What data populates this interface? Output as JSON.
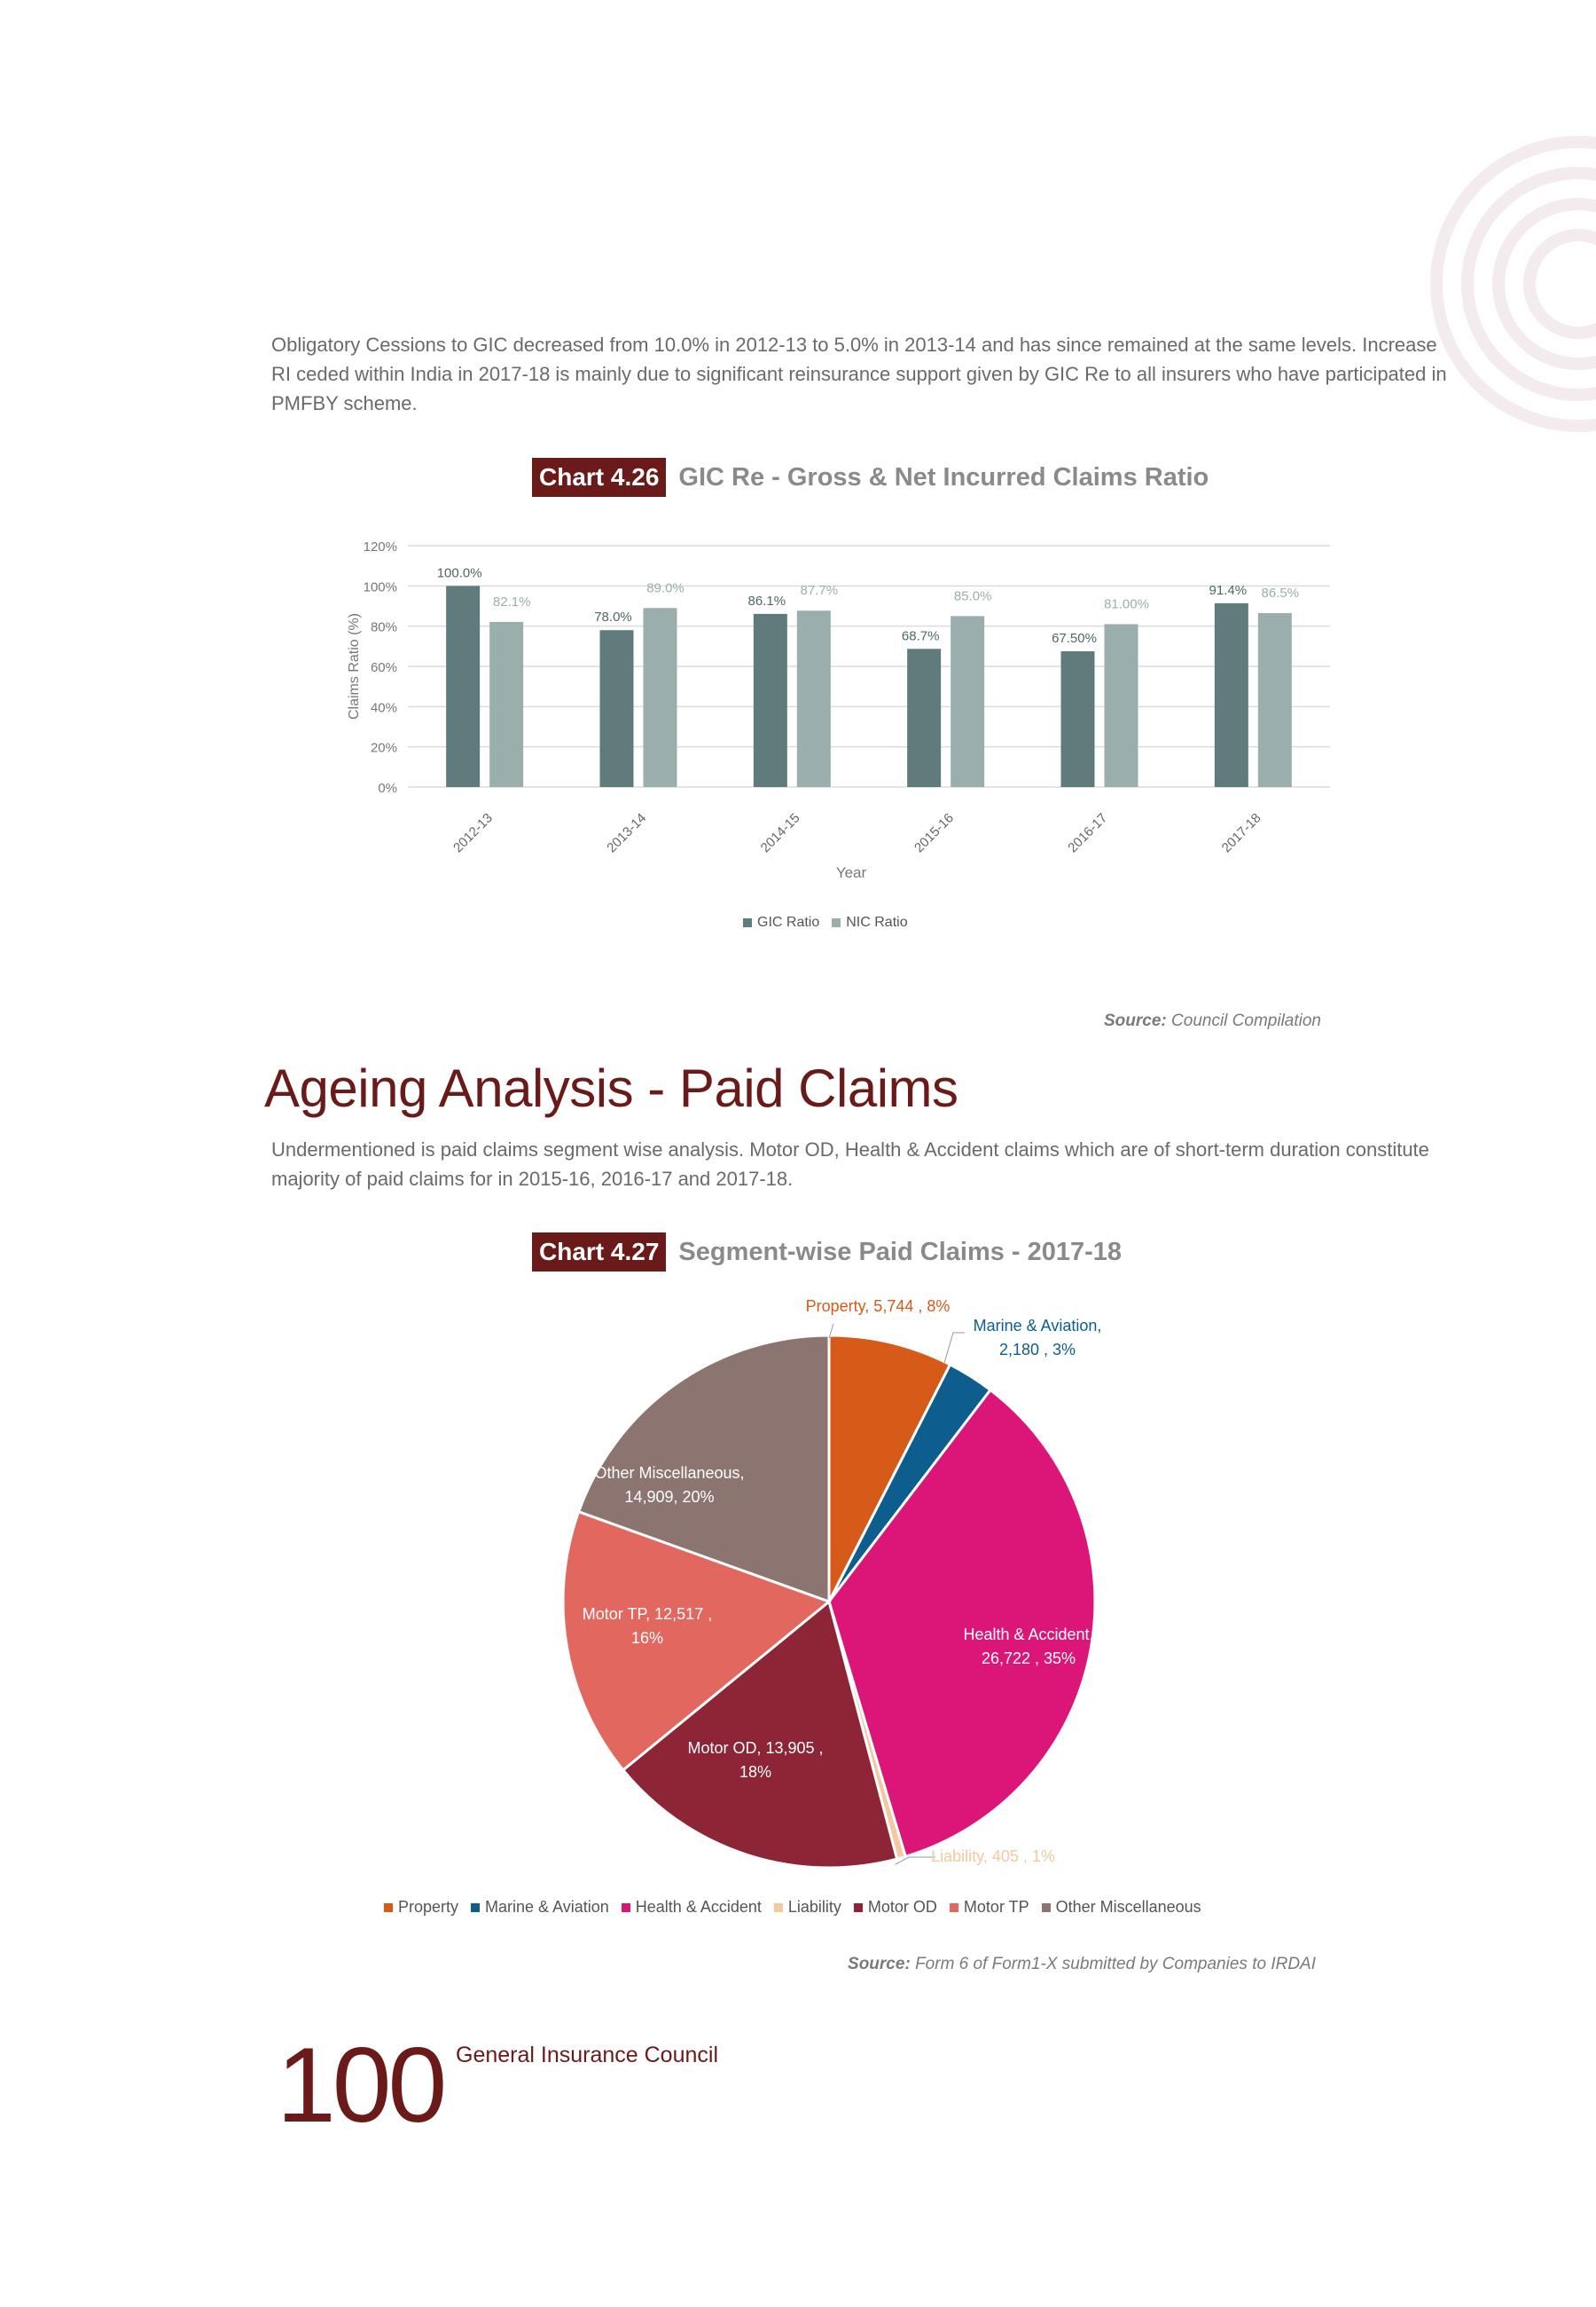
{
  "intro_text": "Obligatory Cessions to GIC decreased from 10.0% in 2012-13 to 5.0% in 2013-14 and has since remained at the same levels. Increase RI ceded within India in 2017-18 is mainly due to significant reinsurance support given by GIC Re to all insurers who have participated in PMFBY scheme.",
  "chart1_header": {
    "number": "Chart 4.26",
    "title": "GIC Re - Gross & Net Incurred Claims Ratio"
  },
  "chart1_source": {
    "label": "Source:",
    "text": "Council Compilation"
  },
  "section_title": "Ageing Analysis - Paid Claims",
  "section_text": "Undermentioned is paid claims segment wise analysis. Motor OD, Health & Accident claims which are of short-term duration constitute majority of paid claims for in 2015-16, 2016-17 and 2017-18.",
  "chart2_header": {
    "number": "Chart 4.27",
    "title": "Segment-wise Paid Claims - 2017-18"
  },
  "chart2_source": {
    "label": "Source:",
    "text": "Form 6 of Form1-X submitted by Companies to IRDAI"
  },
  "footer": {
    "page_number": "100",
    "publisher": "General Insurance Council"
  },
  "chart_data": [
    {
      "type": "bar",
      "xlabel": "Year",
      "ylabel": "Claims Ratio (%)",
      "ylim": [
        0,
        120
      ],
      "yticks": [
        "0%",
        "20%",
        "40%",
        "60%",
        "80%",
        "100%",
        "120%"
      ],
      "categories": [
        "2012-13",
        "2013-14",
        "2014-15",
        "2015-16",
        "2016-17",
        "2017-18"
      ],
      "series": [
        {
          "name": "GIC Ratio",
          "color": "#5f7b7c",
          "values": [
            100.0,
            78.0,
            86.1,
            68.7,
            67.5,
            91.4
          ],
          "labels": [
            "100.0%",
            "78.0%",
            "86.1%",
            "68.7%",
            "67.50%",
            "91.4%"
          ]
        },
        {
          "name": "NIC Ratio",
          "color": "#9aafad",
          "values": [
            82.1,
            89.0,
            87.7,
            85.0,
            81.0,
            86.5
          ],
          "labels": [
            "82.1%",
            "89.0%",
            "87.7%",
            "85.0%",
            "81.00%",
            "86.5%"
          ]
        }
      ],
      "grid": true,
      "legend": "bottom"
    },
    {
      "type": "pie",
      "slices": [
        {
          "name": "Property",
          "value": 5744,
          "percent": 8,
          "color": "#d65a18",
          "label_lines": [
            "Property,  5,744 , 8%"
          ]
        },
        {
          "name": "Marine & Aviation",
          "value": 2180,
          "percent": 3,
          "color": "#0e5d8f",
          "label_lines": [
            "Marine & Aviation,",
            "2,180 , 3%"
          ]
        },
        {
          "name": "Health & Accident",
          "value": 26722,
          "percent": 35,
          "color": "#dc1579",
          "label_lines": [
            "Health & Accident,",
            "26,722 , 35%"
          ]
        },
        {
          "name": "Liability",
          "value": 405,
          "percent": 1,
          "color": "#f2c9a0",
          "label_lines": [
            "Liability,  405 , 1%"
          ]
        },
        {
          "name": "Motor OD",
          "value": 13905,
          "percent": 18,
          "color": "#8e2537",
          "label_lines": [
            "Motor OD,  13,905 ,",
            "18%"
          ]
        },
        {
          "name": "Motor TP",
          "value": 12517,
          "percent": 16,
          "color": "#e2675f",
          "label_lines": [
            "Motor TP,  12,517 ,",
            "16%"
          ]
        },
        {
          "name": "Other Miscellaneous",
          "value": 14909,
          "percent": 20,
          "color": "#8c7470",
          "label_lines": [
            "Other Miscellaneous,",
            "14,909, 20%"
          ]
        }
      ],
      "legend": "bottom"
    }
  ]
}
